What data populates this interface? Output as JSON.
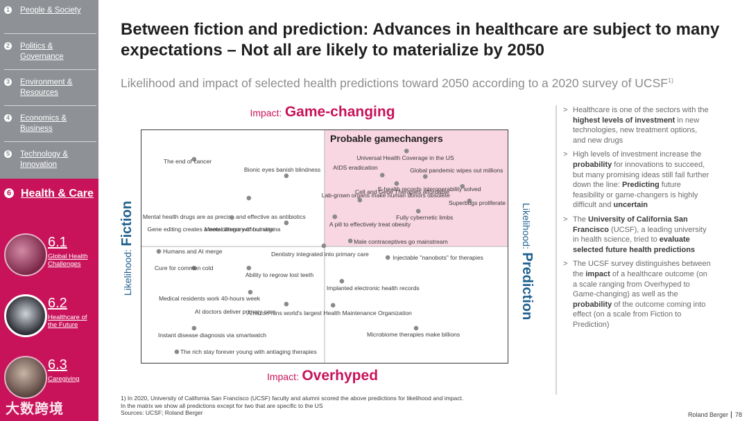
{
  "sidebar": {
    "items": [
      {
        "num": "1",
        "label": "People & Society"
      },
      {
        "num": "2",
        "label": "Politics & Governance"
      },
      {
        "num": "3",
        "label": "Environment & Resources"
      },
      {
        "num": "4",
        "label": "Economics & Business"
      },
      {
        "num": "5",
        "label": "Technology & Innovation"
      },
      {
        "num": "6",
        "label": "Health & Care"
      }
    ],
    "subitems": [
      {
        "num": "6.1",
        "label": "Global Health Challenges"
      },
      {
        "num": "6.2",
        "label": "Healthcare of the Future"
      },
      {
        "num": "6.3",
        "label": "Caregiving"
      }
    ],
    "watermark": "大数跨境",
    "colors": {
      "sidebar": "#8e9196",
      "accent": "#c8135a"
    }
  },
  "header": {
    "title": "Between fiction and prediction: Advances in healthcare are subject to many expectations – Not all are likely to materialize by 2050",
    "subtitle": "Likelihood and impact of selected health predictions toward 2050 according to a 2020 survey of UCSF",
    "subtitle_sup": "1)"
  },
  "chart_labels": {
    "impact_prefix": "Impact:",
    "impact_top": "Game-changing",
    "impact_bottom": "Overhyped",
    "likelihood_prefix": "Likelihood:",
    "likelihood_left": "Fiction",
    "likelihood_right": "Prediction",
    "quadrant": "Probable gamechangers"
  },
  "chart_data": {
    "type": "scatter",
    "xlabel": "Likelihood: Fiction – Prediction",
    "ylabel": "Impact: Overhyped – Game-changing",
    "xlim": [
      0,
      100
    ],
    "ylim": [
      0,
      100
    ],
    "grid": false,
    "highlight_quadrant": "top-right",
    "colors": {
      "points": "#8a8a8a",
      "highlight": "#f8d6e2",
      "frame": "#3a3a3a",
      "axis_text": "#1e5f8f"
    },
    "points": [
      {
        "label": "The end of cancer",
        "x": 14.5,
        "y": 87.3
      },
      {
        "label": "Bionic eyes banish blindness",
        "x": 39.6,
        "y": 80.2
      },
      {
        "label": "Mental health drugs are as precise and effective as antibiotics",
        "x": 29.4,
        "y": 70.7
      },
      {
        "label": "Gene editing creates a new category of humans",
        "x": 24.8,
        "y": 62.4
      },
      {
        "label": "Mental illness without stigma",
        "x": 39.6,
        "y": 60.1
      },
      {
        "label": "Universal Health Coverage in the US",
        "x": 72.3,
        "y": 90.8
      },
      {
        "label": "AIDS eradication",
        "x": 65.7,
        "y": 80.5
      },
      {
        "label": "Global pandemic wipes out millions",
        "x": 77.4,
        "y": 79.9
      },
      {
        "label": "E-health records interoperability solved",
        "x": 69.6,
        "y": 76.9
      },
      {
        "label": "Lab-grown organs make human donors obsolete",
        "x": 87.5,
        "y": 75.7
      },
      {
        "label": "Cell and Gene Therapies affordable",
        "x": 59.6,
        "y": 69.8
      },
      {
        "label": "Superbugs proliferate",
        "x": 89.4,
        "y": 69.5
      },
      {
        "label": "Fully cybernetic limbs",
        "x": 75.5,
        "y": 65.1
      },
      {
        "label": "A pill to effectively treat obesity",
        "x": 52.8,
        "y": 62.7
      },
      {
        "label": "Male contraceptives go mainstream",
        "x": 57.0,
        "y": 52.4
      },
      {
        "label": "Humans and AI merge",
        "x": 4.9,
        "y": 47.9
      },
      {
        "label": "Dentistry integrated into primary care",
        "x": 49.8,
        "y": 50.3
      },
      {
        "label": "Injectable \"nanobots\" for therapies",
        "x": 67.2,
        "y": 45.3
      },
      {
        "label": "Cure for common cold",
        "x": 14.5,
        "y": 40.8
      },
      {
        "label": "Ability to regrow lost teeth",
        "x": 29.4,
        "y": 40.8
      },
      {
        "label": "Implanted electronic health records",
        "x": 54.7,
        "y": 35.2
      },
      {
        "label": "Medical residents work 40-hours week",
        "x": 29.8,
        "y": 30.5
      },
      {
        "label": "AI doctors deliver primary care",
        "x": 39.6,
        "y": 25.4
      },
      {
        "label": "Amazon runs world's largest Health Maintenance Organization",
        "x": 52.3,
        "y": 24.9
      },
      {
        "label": "Instant disease diagnosis via smartwatch",
        "x": 14.5,
        "y": 15.1
      },
      {
        "label": "Microbiome therapies make billions",
        "x": 74.9,
        "y": 15.1
      },
      {
        "label": "The rich stay forever young with antiaging therapies",
        "x": 9.8,
        "y": 5.0
      }
    ]
  },
  "notes": [
    {
      "parts": [
        {
          "t": "Healthcare is one of the sectors with the ",
          "b": false
        },
        {
          "t": "highest levels of investment",
          "b": true
        },
        {
          "t": " in new technologies, new treatment options, and new drugs",
          "b": false
        }
      ]
    },
    {
      "parts": [
        {
          "t": "High levels of investment increase the ",
          "b": false
        },
        {
          "t": "probability",
          "b": true
        },
        {
          "t": " for innovations to succeed, but many promising ideas still fail further down the line: ",
          "b": false
        },
        {
          "t": "Predicting",
          "b": true
        },
        {
          "t": " future feasibility or game-changers is highly difficult and ",
          "b": false
        },
        {
          "t": "uncertain",
          "b": true
        }
      ]
    },
    {
      "parts": [
        {
          "t": "The ",
          "b": false
        },
        {
          "t": "University of California San Francisco",
          "b": true
        },
        {
          "t": " (UCSF), a leading university in health science, tried to ",
          "b": false
        },
        {
          "t": "evaluate selected future health predictions",
          "b": true
        }
      ]
    },
    {
      "parts": [
        {
          "t": "The UCSF survey distinguishes between the ",
          "b": false
        },
        {
          "t": "impact",
          "b": true
        },
        {
          "t": " of a healthcare outcome (on a scale ranging from Overhyped to Game-changing) as well as the ",
          "b": false
        },
        {
          "t": "probability",
          "b": true
        },
        {
          "t": " of the outcome coming into effect (on a scale from Fiction to Prediction)",
          "b": false
        }
      ]
    }
  ],
  "notes_marker": ">",
  "footnote": {
    "line1": "1) In 2020, University of California San Francisco (UCSF) faculty and alumni scored the above predictions for likelihood and impact.",
    "line2": "In the matrix we show all predictions except for two that are specific to the US",
    "sources": "Sources: UCSF; Roland Berger"
  },
  "brand": {
    "name": "Roland Berger",
    "page": "78"
  }
}
